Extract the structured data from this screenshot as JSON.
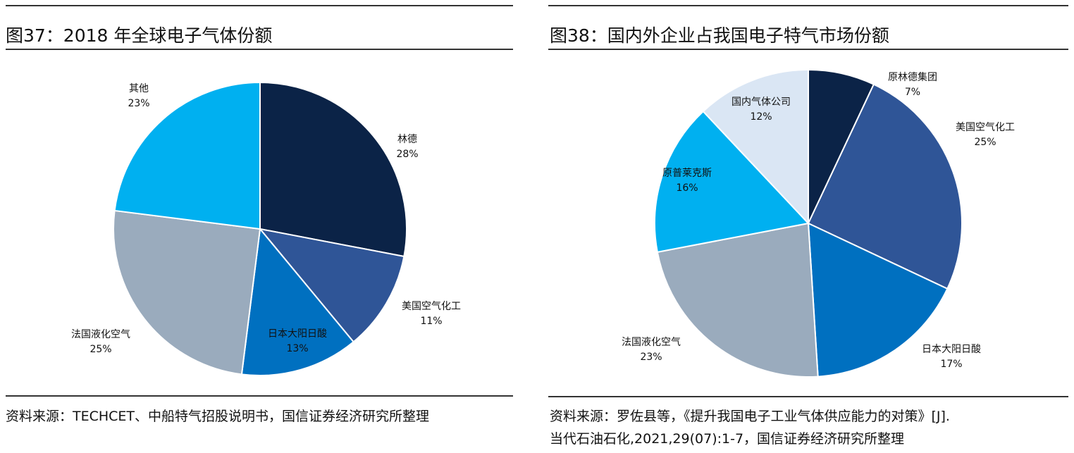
{
  "left": {
    "title": "图37：2018 年全球电子气体份额",
    "source": "资料来源：TECHCET、中船特气招股说明书，国信证券经济研究所整理"
  },
  "right": {
    "title": "图38：国内外企业占我国电子特气市场份额",
    "source_line1": "资料来源：罗佐县等，《提升我国电子工业气体供应能力的对策》[J].",
    "source_line2": "当代石油石化,2021,29(07):1-7，国信证券经济研究所整理"
  },
  "chart_data": [
    {
      "type": "pie",
      "title": "2018 年全球电子气体份额",
      "slices": [
        {
          "label": "林德",
          "value": 28,
          "text": "28%",
          "color": "#0b2347"
        },
        {
          "label": "美国空气化工",
          "value": 11,
          "text": "11%",
          "color": "#2f5597"
        },
        {
          "label": "日本大阳日酸",
          "value": 13,
          "text": "13%",
          "color": "#0070c0"
        },
        {
          "label": "法国液化空气",
          "value": 25,
          "text": "25%",
          "color": "#9aabbd"
        },
        {
          "label": "其他",
          "value": 23,
          "text": "23%",
          "color": "#00b0f0"
        }
      ]
    },
    {
      "type": "pie",
      "title": "国内外企业占我国电子特气市场份额",
      "slices": [
        {
          "label": "原林德集团",
          "value": 7,
          "text": "7%",
          "color": "#0b2347"
        },
        {
          "label": "美国空气化工",
          "value": 25,
          "text": "25%",
          "color": "#2f5597"
        },
        {
          "label": "日本大阳日酸",
          "value": 17,
          "text": "17%",
          "color": "#0070c0"
        },
        {
          "label": "法国液化空气",
          "value": 23,
          "text": "23%",
          "color": "#9aabbd"
        },
        {
          "label": "原普莱克斯",
          "value": 16,
          "text": "16%",
          "color": "#00b0f0"
        },
        {
          "label": "国内气体公司",
          "value": 12,
          "text": "12%",
          "color": "#dae6f4"
        }
      ]
    }
  ]
}
